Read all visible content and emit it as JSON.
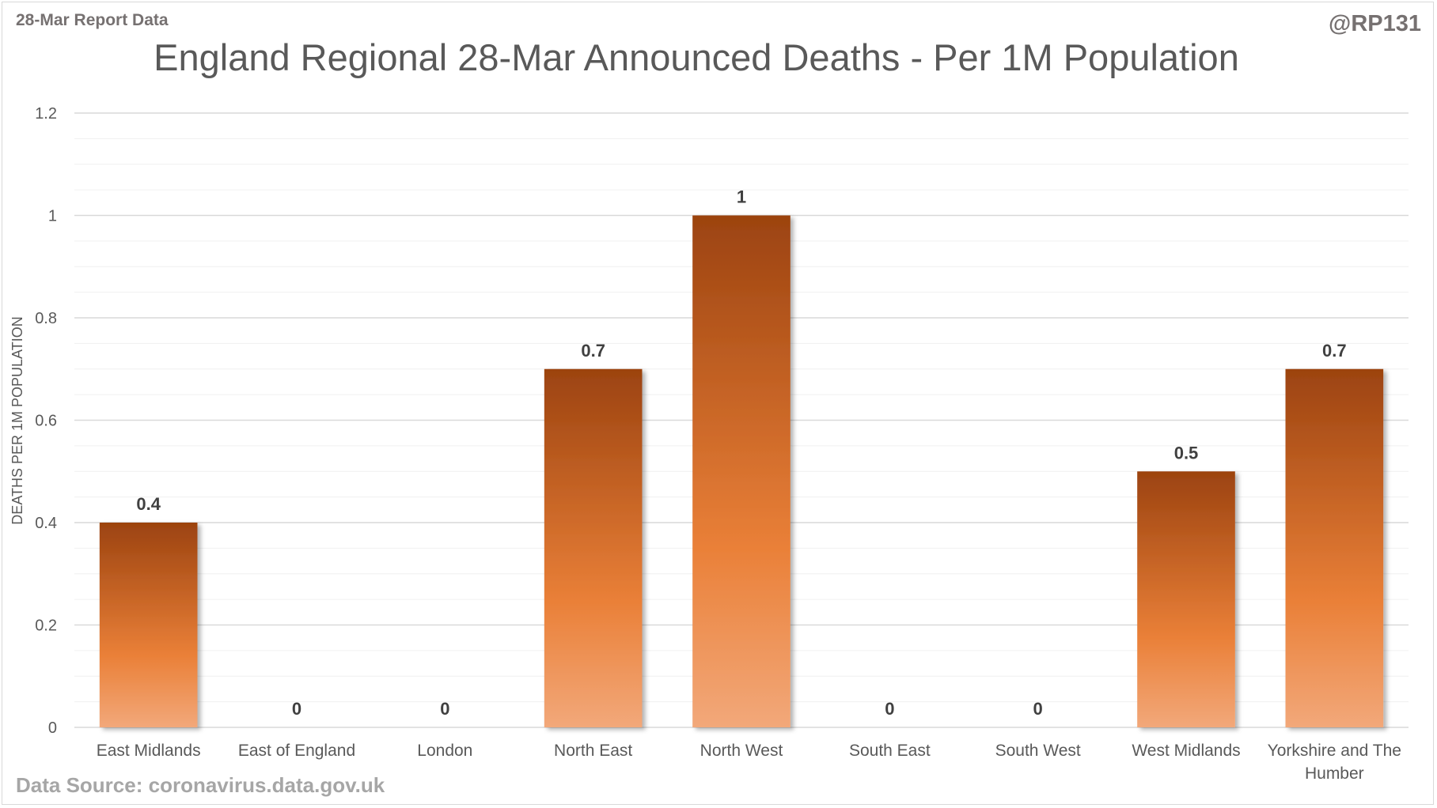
{
  "header": {
    "report_label": "28-Mar Report Data",
    "handle": "@RP131"
  },
  "footer": {
    "source": "Data Source: coronavirus.data.gov.uk"
  },
  "colors": {
    "bar_top": "#9c4310",
    "bar_mid": "#ea8038",
    "bar_bottom": "#f2a87a",
    "grid_major": "#d9d9d9",
    "grid_minor": "#f0f0f0",
    "text": "#595959"
  },
  "chart_data": {
    "type": "bar",
    "title": "England Regional 28-Mar Announced Deaths - Per 1M Population",
    "xlabel": "",
    "ylabel": "DEATHS PER 1M POPULATION",
    "categories": [
      "East Midlands",
      "East of England",
      "London",
      "North East",
      "North West",
      "South East",
      "South West",
      "West Midlands",
      "Yorkshire and The Humber"
    ],
    "values": [
      0.4,
      0,
      0,
      0.7,
      1,
      0,
      0,
      0.5,
      0.7
    ],
    "data_labels": [
      "0.4",
      "0",
      "0",
      "0.7",
      "1",
      "0",
      "0",
      "0.5",
      "0.7"
    ],
    "ylim": [
      0,
      1.2
    ],
    "yticks": [
      0,
      0.2,
      0.4,
      0.6,
      0.8,
      1,
      1.2
    ],
    "ytick_labels": [
      "0",
      "0.2",
      "0.4",
      "0.6",
      "0.8",
      "1",
      "1.2"
    ],
    "grid": true,
    "legend": "none"
  }
}
